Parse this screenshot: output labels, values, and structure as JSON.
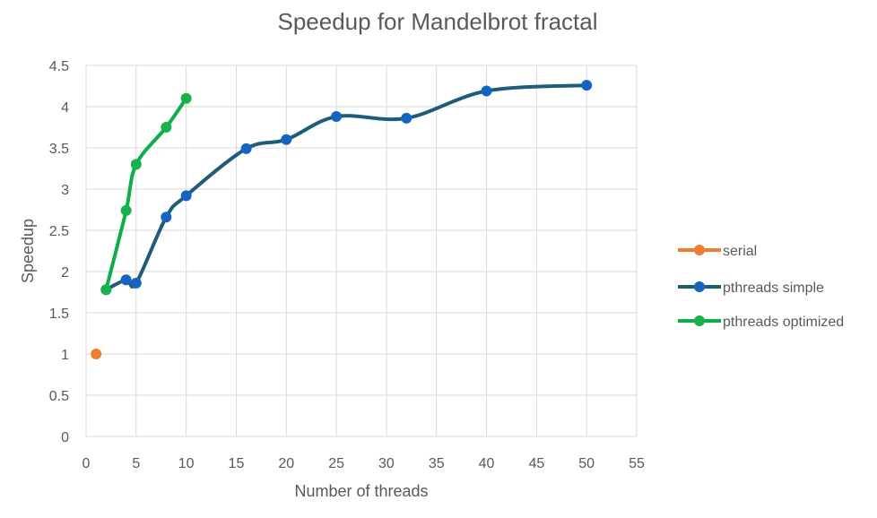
{
  "chart_data": {
    "type": "scatter",
    "title": "Speedup for Mandelbrot fractal",
    "xlabel": "Number of threads",
    "ylabel": "Speedup",
    "xlim": [
      0,
      55
    ],
    "ylim": [
      0,
      4.5
    ],
    "x_ticks": [
      "0",
      "5",
      "10",
      "15",
      "20",
      "25",
      "30",
      "35",
      "40",
      "45",
      "50",
      "55"
    ],
    "y_ticks": [
      "0",
      "0.5",
      "1",
      "1.5",
      "2",
      "2.5",
      "3",
      "3.5",
      "4",
      "4.5"
    ],
    "grid": true,
    "legend_position": "right",
    "series": [
      {
        "name": "serial",
        "color": "#ed7d31",
        "x": [
          1
        ],
        "y": [
          1.0
        ]
      },
      {
        "name": "pthreads simple",
        "color": "#1f5c7a",
        "marker_color": "#1565c0",
        "x": [
          2,
          4,
          5,
          8,
          10,
          16,
          20,
          25,
          32,
          40,
          50
        ],
        "y": [
          1.78,
          1.9,
          1.86,
          2.66,
          2.92,
          3.49,
          3.6,
          3.88,
          3.86,
          4.19,
          4.26
        ]
      },
      {
        "name": "pthreads optimized",
        "color": "#0fae4b",
        "marker_color": "#17b14e",
        "x": [
          2,
          4,
          5,
          8,
          10
        ],
        "y": [
          1.78,
          2.74,
          3.3,
          3.75,
          4.1
        ]
      }
    ]
  }
}
